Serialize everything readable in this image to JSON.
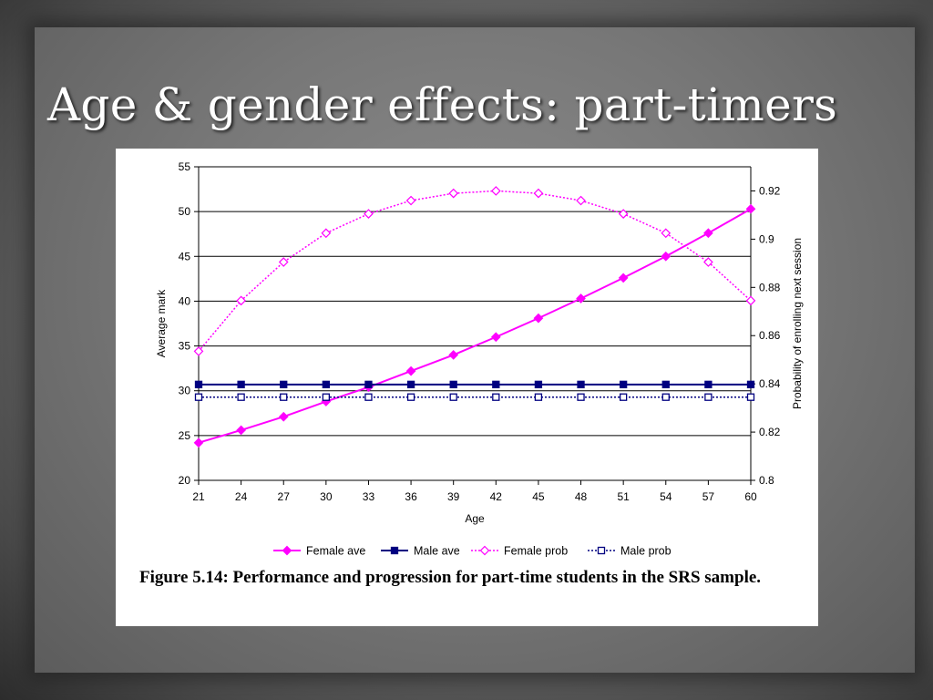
{
  "slide": {
    "title": "Age & gender effects: part-timers"
  },
  "figure": {
    "caption": "Figure 5.14: Performance and progression for part-time students in the SRS sample."
  },
  "chart_data": {
    "type": "line",
    "xlabel": "Age",
    "ylabel": "Average mark",
    "y2label": "Probability of enrolling next session",
    "x": [
      21,
      24,
      27,
      30,
      33,
      36,
      39,
      42,
      45,
      48,
      51,
      54,
      57,
      60
    ],
    "ylim": [
      20,
      55
    ],
    "y2lim": [
      0.8,
      0.93
    ],
    "yticks": [
      "20",
      "25",
      "30",
      "35",
      "40",
      "45",
      "50",
      "55"
    ],
    "y2ticks": [
      "0.8",
      "0.82",
      "0.84",
      "0.86",
      "0.88",
      "0.9",
      "0.92"
    ],
    "grid": "horizontal",
    "legend_position": "bottom",
    "series": [
      {
        "name": "Female ave",
        "axis": "left",
        "color": "#ff00ff",
        "style": "solid",
        "marker": "filled-diamond",
        "values": [
          24.2,
          25.6,
          27.1,
          28.8,
          30.4,
          32.2,
          34.0,
          36.0,
          38.1,
          40.3,
          42.6,
          45.0,
          47.6,
          50.3
        ]
      },
      {
        "name": "Male ave",
        "axis": "left",
        "color": "#000080",
        "style": "solid",
        "marker": "filled-square",
        "values": [
          30.7,
          30.7,
          30.7,
          30.7,
          30.7,
          30.7,
          30.7,
          30.7,
          30.7,
          30.7,
          30.7,
          30.7,
          30.7,
          30.7
        ]
      },
      {
        "name": "Female prob",
        "axis": "right",
        "color": "#ff00ff",
        "style": "dotted",
        "marker": "open-diamond",
        "values": [
          0.8535,
          0.8745,
          0.8905,
          0.9025,
          0.9105,
          0.916,
          0.919,
          0.92,
          0.919,
          0.916,
          0.9105,
          0.9025,
          0.8905,
          0.8745
        ]
      },
      {
        "name": "Male prob",
        "axis": "right",
        "color": "#000080",
        "style": "dotted",
        "marker": "open-square",
        "values": [
          0.8345,
          0.8345,
          0.8345,
          0.8345,
          0.8345,
          0.8345,
          0.8345,
          0.8345,
          0.8345,
          0.8345,
          0.8345,
          0.8345,
          0.8345,
          0.8345
        ]
      }
    ]
  }
}
